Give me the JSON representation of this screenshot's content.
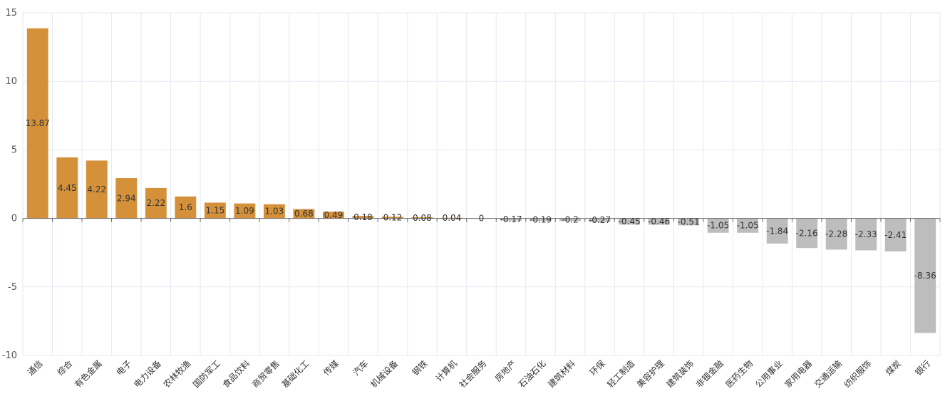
{
  "chart_data": {
    "type": "bar",
    "title": "",
    "xlabel": "",
    "ylabel": "",
    "ylim": [
      -10,
      15
    ],
    "yticks": [
      15,
      10,
      5,
      0,
      -5,
      -10
    ],
    "grid": true,
    "categories": [
      "通信",
      "综合",
      "有色金属",
      "电子",
      "电力设备",
      "农林牧渔",
      "国防军工",
      "食品饮料",
      "商贸零售",
      "基础化工",
      "传媒",
      "汽车",
      "机械设备",
      "钢铁",
      "计算机",
      "社会服务",
      "房地产",
      "石油石化",
      "建筑材料",
      "环保",
      "轻工制造",
      "美容护理",
      "建筑装饰",
      "非银金融",
      "医药生物",
      "公用事业",
      "家用电器",
      "交通运输",
      "纺织服饰",
      "煤炭",
      "银行"
    ],
    "values": [
      13.87,
      4.45,
      4.22,
      2.94,
      2.22,
      1.6,
      1.15,
      1.09,
      1.03,
      0.68,
      0.49,
      0.18,
      0.12,
      0.08,
      0.04,
      0,
      -0.17,
      -0.19,
      -0.2,
      -0.27,
      -0.45,
      -0.46,
      -0.51,
      -1.05,
      -1.05,
      -1.84,
      -2.16,
      -2.28,
      -2.33,
      -2.41,
      -8.36
    ],
    "colors": {
      "positive": "#D4913A",
      "negative": "#BDBDBD",
      "grid": "#E6E9F2",
      "axis": "#666666"
    }
  }
}
